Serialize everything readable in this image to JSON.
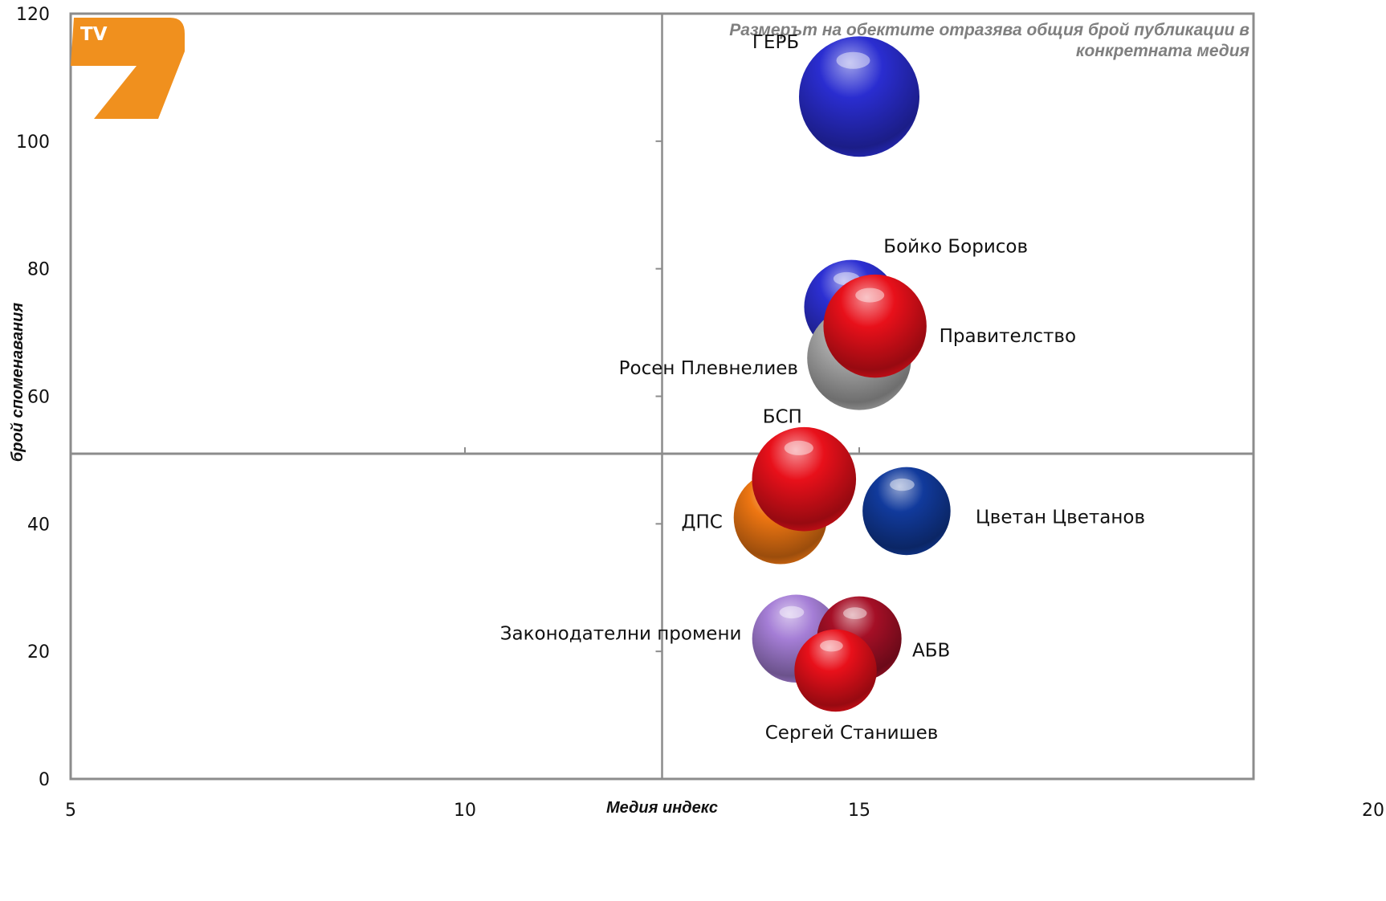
{
  "logo": {
    "text": "TV",
    "digit": "7",
    "color": "#f0901e"
  },
  "chart_data": {
    "type": "bubble",
    "title": "",
    "note_lines": [
      "Размерът на обектите отразява общия брой публикации в",
      "конкретната медия"
    ],
    "xlabel": "Медия индекс",
    "ylabel": "брой споменавания",
    "xlim": [
      5,
      20
    ],
    "ylim": [
      0,
      120
    ],
    "x_ticks": [
      "5",
      "10",
      "15",
      "20"
    ],
    "y_ticks": [
      "0",
      "20",
      "40",
      "60",
      "80",
      "100",
      "120"
    ],
    "quadrant_lines": {
      "x": 12.5,
      "y": 51
    },
    "grid": false,
    "series": [
      {
        "name": "ГЕРБ",
        "x": 15.0,
        "y": 107,
        "size": 75,
        "color": "#2a2dd0"
      },
      {
        "name": "Бойко Борисов",
        "x": 14.9,
        "y": 74,
        "size": 46,
        "color": "#2c2fd2"
      },
      {
        "name": "Росен Плевнелиев",
        "x": 15.0,
        "y": 66,
        "size": 56,
        "color": "#a9a9a9"
      },
      {
        "name": "Правителство",
        "x": 15.2,
        "y": 71,
        "size": 55,
        "color": "#e8101a"
      },
      {
        "name": "БСП",
        "x": 14.3,
        "y": 47,
        "size": 56,
        "color": "#e8101a"
      },
      {
        "name": "ДПС",
        "x": 14.0,
        "y": 41,
        "size": 45,
        "color": "#ee7612"
      },
      {
        "name": "Цветан Цветанов",
        "x": 15.6,
        "y": 42,
        "size": 40,
        "color": "#113a9c"
      },
      {
        "name": "Законодателни промени",
        "x": 14.2,
        "y": 22,
        "size": 40,
        "color": "#a57ed6"
      },
      {
        "name": "АБВ",
        "x": 15.0,
        "y": 22,
        "size": 37,
        "color": "#a50f26"
      },
      {
        "name": "Сергей Станишев",
        "x": 14.7,
        "y": 17,
        "size": 35,
        "color": "#e8101a"
      }
    ]
  }
}
